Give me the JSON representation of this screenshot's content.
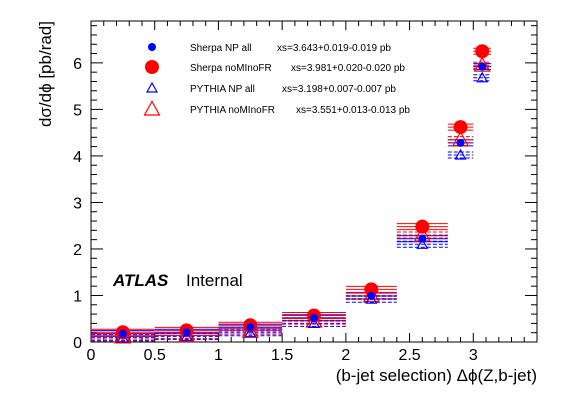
{
  "chart_data": {
    "type": "scatter",
    "xlabel": "(b-jet selection) Δϕ(Z,b-jet)",
    "ylabel": "dσ/dϕ [pb/rad]",
    "xlim": [
      0,
      3.5
    ],
    "ylim": [
      0,
      6.9
    ],
    "x_ticks": [
      "0",
      "0.5",
      "1",
      "1.5",
      "2",
      "2.5",
      "3"
    ],
    "y_ticks": [
      "0",
      "1",
      "2",
      "3",
      "4",
      "5",
      "6"
    ],
    "grid": false,
    "legend_position": "top",
    "atlas_label": "ATLAS",
    "atlas_status": "Internal",
    "bins": [
      {
        "lo": 0.0,
        "hi": 0.5
      },
      {
        "lo": 0.5,
        "hi": 1.0
      },
      {
        "lo": 1.0,
        "hi": 1.5
      },
      {
        "lo": 1.5,
        "hi": 2.0
      },
      {
        "lo": 2.0,
        "hi": 2.4
      },
      {
        "lo": 2.4,
        "hi": 2.8
      },
      {
        "lo": 2.8,
        "hi": 3.0
      },
      {
        "lo": 3.0,
        "hi": 3.14
      }
    ],
    "series": [
      {
        "name": "Sherpa NP all",
        "xs_text": "xs=3.643+0.019-0.019 pb",
        "marker": "dot-small",
        "color": "#0000ff",
        "line_style": "solid",
        "x": [
          0.25,
          0.75,
          1.25,
          1.75,
          2.2,
          2.6,
          2.9,
          3.07
        ],
        "values": [
          0.18,
          0.21,
          0.32,
          0.52,
          0.99,
          2.22,
          4.28,
          5.92
        ]
      },
      {
        "name": "Sherpa noMInoFR",
        "xs_text": "xs=3.981+0.020-0.020 pb",
        "marker": "dot-large",
        "color": "#ff0000",
        "line_style": "solid",
        "x": [
          0.25,
          0.75,
          1.25,
          1.75,
          2.2,
          2.6,
          2.9,
          3.07
        ],
        "values": [
          0.21,
          0.25,
          0.36,
          0.57,
          1.13,
          2.48,
          4.62,
          6.25
        ]
      },
      {
        "name": "PYTHIA NP all",
        "xs_text": "xs=3.198+0.007-0.007 pb",
        "marker": "triangle-small",
        "color": "#0000ff",
        "line_style": "dashed",
        "x": [
          0.25,
          0.75,
          1.25,
          1.75,
          2.2,
          2.6,
          2.9,
          3.07
        ],
        "values": [
          0.09,
          0.12,
          0.2,
          0.4,
          0.92,
          2.1,
          4.02,
          5.68
        ]
      },
      {
        "name": "PYTHIA noMInoFR",
        "xs_text": "xs=3.551+0.013-0.013 pb",
        "marker": "triangle-large",
        "color": "#ff0000",
        "line_style": "dashed",
        "x": [
          0.25,
          0.75,
          1.25,
          1.75,
          2.2,
          2.6,
          2.9,
          3.07
        ],
        "values": [
          0.11,
          0.14,
          0.23,
          0.45,
          1.0,
          2.3,
          4.35,
          5.95
        ]
      }
    ]
  }
}
